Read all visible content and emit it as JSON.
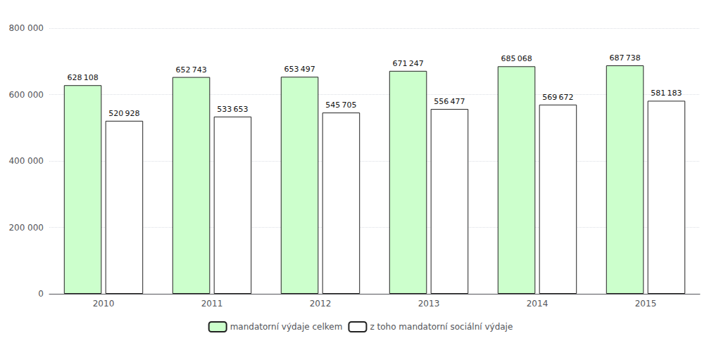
{
  "chart_data": {
    "type": "bar",
    "categories": [
      "2010",
      "2011",
      "2012",
      "2013",
      "2014",
      "2015"
    ],
    "series": [
      {
        "name": "mandatorní výdaje celkem",
        "color": "#ccffcc",
        "values": [
          628108,
          652743,
          653497,
          671247,
          685068,
          687738
        ],
        "value_labels": [
          "628 108",
          "652 743",
          "653 497",
          "671 247",
          "685 068",
          "687 738"
        ]
      },
      {
        "name": "z toho mandatorní sociální výdaje",
        "color": "#ffffff",
        "values": [
          520928,
          533653,
          545705,
          556477,
          569672,
          581183
        ],
        "value_labels": [
          "520 928",
          "533 653",
          "545 705",
          "556 477",
          "569 672",
          "581 183"
        ]
      }
    ],
    "ylim": [
      0,
      800000
    ],
    "yticks": [
      0,
      {
        "value": 200000,
        "label": "200 000"
      },
      {
        "value": 400000,
        "label": "400 000"
      },
      {
        "value": 600000,
        "label": "600 000"
      },
      {
        "value": 800000,
        "label": "800 000"
      }
    ],
    "grid": true,
    "legend": "bottom",
    "data_labels": true
  }
}
